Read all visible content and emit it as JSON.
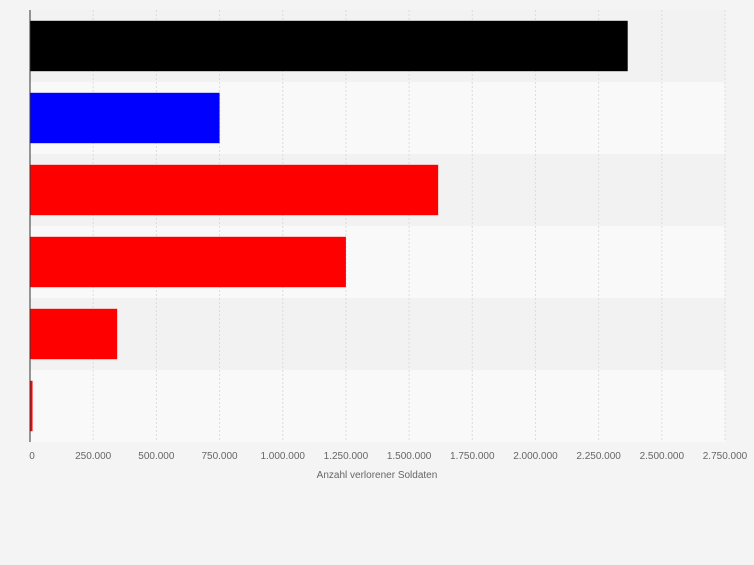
{
  "chart_data": {
    "type": "bar",
    "orientation": "horizontal",
    "title": "",
    "categories": [
      "",
      "",
      "",
      "",
      "",
      ""
    ],
    "values": [
      2365000,
      750000,
      1615000,
      1250000,
      345000,
      10000
    ],
    "colors": [
      "#000000",
      "#0000ff",
      "#ff0000",
      "#ff0000",
      "#ff0000",
      "#ff0000"
    ],
    "xlabel": "Anzahl verlorener Soldaten",
    "ylabel": "",
    "xlim": [
      0,
      2750000
    ],
    "xticks": [
      0,
      250000,
      500000,
      750000,
      1000000,
      1250000,
      1500000,
      1750000,
      2000000,
      2250000,
      2500000,
      2750000
    ],
    "xtick_labels": [
      "0",
      "250.000",
      "500.000",
      "750.000",
      "1.000.000",
      "1.250.000",
      "1.500.000",
      "1.750.000",
      "2.000.000",
      "2.250.000",
      "2.500.000",
      "2.750.000"
    ],
    "grid": true,
    "legend": "none"
  }
}
